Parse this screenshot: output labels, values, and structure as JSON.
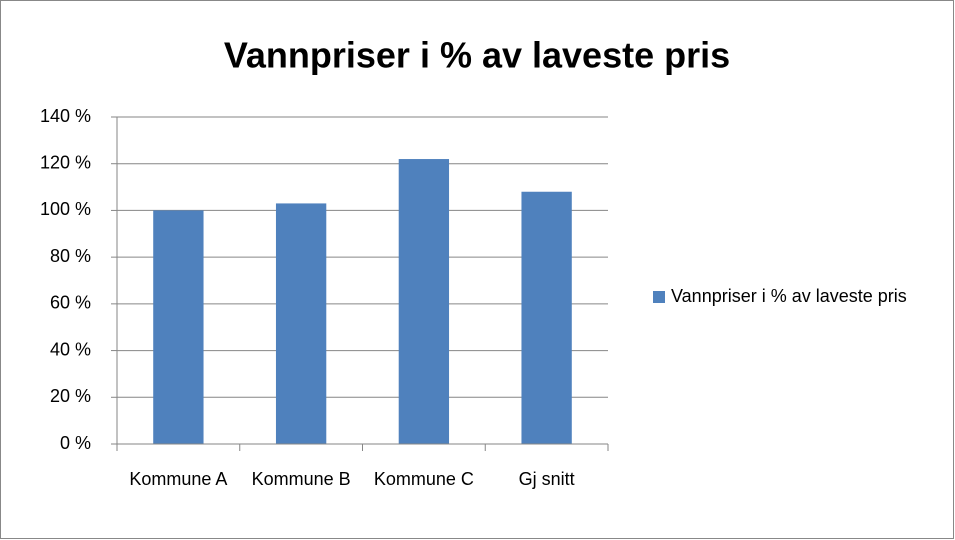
{
  "chart_data": {
    "type": "bar",
    "title": "Vannpriser i % av laveste pris",
    "categories": [
      "Kommune A",
      "Kommune B",
      "Kommune C",
      "Gj snitt"
    ],
    "series": [
      {
        "name": "Vannpriser i % av laveste pris",
        "color": "#4f81bd",
        "values": [
          100,
          103,
          122,
          108
        ]
      }
    ],
    "ylim": [
      0,
      140
    ],
    "yticks": [
      {
        "value": 0,
        "label": "0 %"
      },
      {
        "value": 20,
        "label": "20 %"
      },
      {
        "value": 40,
        "label": "40 %"
      },
      {
        "value": 60,
        "label": "60 %"
      },
      {
        "value": 80,
        "label": "80 %"
      },
      {
        "value": 100,
        "label": "100 %"
      },
      {
        "value": 120,
        "label": "120 %"
      },
      {
        "value": 140,
        "label": "140 %"
      }
    ],
    "grid": true,
    "legend": "right"
  }
}
